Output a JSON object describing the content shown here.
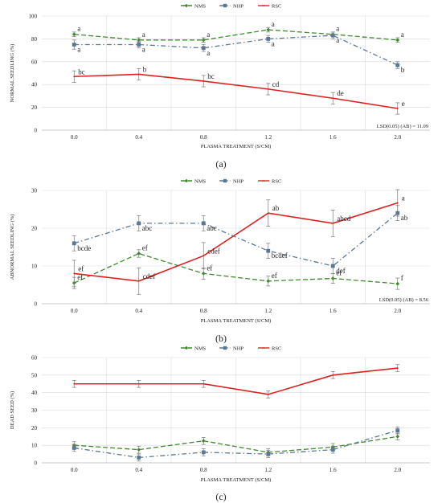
{
  "chart_data": [
    {
      "type": "line",
      "panel_label": "(a)",
      "x": [
        "0.0",
        "0.4",
        "0.8",
        "1.2",
        "1.6",
        "2.0"
      ],
      "xlabel": "PLASMA TREATMENT (S/CM)",
      "ylabel": "NORMAL SEEDLING (%)",
      "ylim": [
        0,
        100
      ],
      "yticks": [
        "0",
        "20",
        "40",
        "60",
        "80",
        "100"
      ],
      "legend_position": "top",
      "lsd_label": "LSD(0.05) (AB) = 11.09",
      "series": [
        {
          "name": "NMS",
          "color": "#3f8a2e",
          "dash": "6,3",
          "marker": "diamond",
          "values": [
            84,
            79,
            79,
            88,
            84,
            79
          ],
          "errors": [
            2,
            2,
            2,
            2,
            2,
            2
          ],
          "letters": [
            "a",
            "a",
            "a",
            "a",
            "a",
            "a"
          ]
        },
        {
          "name": "NHP",
          "color": "#5a7896",
          "dash": "6,3,1.5,3",
          "marker": "square",
          "values": [
            75,
            75,
            72,
            80,
            83,
            57
          ],
          "errors": [
            4,
            3,
            3,
            3,
            3,
            3
          ],
          "letters": [
            "a",
            "a",
            "a",
            "a",
            "a",
            "b"
          ]
        },
        {
          "name": "RSC",
          "color": "#e02020",
          "dash": "",
          "marker": "none",
          "values": [
            47,
            49,
            43,
            36,
            28,
            19
          ],
          "errors": [
            5,
            5,
            5,
            5,
            5,
            5
          ],
          "letters": [
            "bc",
            "b",
            "bc",
            "cd",
            "de",
            "e"
          ]
        }
      ]
    },
    {
      "type": "line",
      "panel_label": "(b)",
      "x": [
        "0.0",
        "0.4",
        "0.8",
        "1.2",
        "1.6",
        "2.0"
      ],
      "xlabel": "PLASMA TREATMENT (S/CM)",
      "ylabel": "ABNORMAL SEEDLING (%)",
      "ylim": [
        0,
        30
      ],
      "yticks": [
        "0",
        "10",
        "20",
        "30"
      ],
      "legend_position": "top",
      "lsd_label": "LSD(0.05) (AB) = 8.56",
      "series": [
        {
          "name": "NMS",
          "color": "#3f8a2e",
          "dash": "6,3",
          "marker": "diamond",
          "values": [
            5.5,
            13.3,
            8,
            6,
            6.7,
            5.3
          ],
          "errors": [
            1.5,
            1,
            1.5,
            1.3,
            1.3,
            1.5
          ],
          "letters": [
            "ef",
            "ef",
            "ef",
            "ef",
            "ef",
            "f"
          ]
        },
        {
          "name": "NHP",
          "color": "#5a7896",
          "dash": "6,3,1.5,3",
          "marker": "square",
          "values": [
            16,
            21.3,
            21.3,
            14,
            10,
            24
          ],
          "errors": [
            2,
            2,
            2,
            2,
            2,
            2
          ],
          "letters": [
            "bcde",
            "abc",
            "abc",
            "bcdef",
            "def",
            "ab"
          ]
        },
        {
          "name": "RSC",
          "color": "#e02020",
          "dash": "",
          "marker": "none",
          "values": [
            8,
            6,
            12.7,
            24,
            21.3,
            26.7
          ],
          "errors": [
            3.5,
            3.5,
            3.5,
            3.5,
            3.5,
            3.5
          ],
          "letters": [
            "ef",
            "cdef",
            "cdef",
            "ab",
            "abcd",
            "a"
          ]
        }
      ]
    },
    {
      "type": "line",
      "panel_label": "(c)",
      "x": [
        "0.0",
        "0.4",
        "0.8",
        "1.2",
        "1.6",
        "2.0"
      ],
      "xlabel": "PLASMA TREATMENT (S/CM)",
      "ylabel": "DEAD SEED (%)",
      "ylim": [
        0,
        60
      ],
      "yticks": [
        "0",
        "10",
        "20",
        "30",
        "40",
        "50",
        "60"
      ],
      "legend_position": "top",
      "series": [
        {
          "name": "NMS",
          "color": "#3f8a2e",
          "dash": "6,3",
          "marker": "diamond",
          "values": [
            10,
            7.5,
            12.5,
            6,
            9,
            15
          ],
          "errors": [
            2,
            2,
            2,
            2,
            2,
            2
          ],
          "letters": []
        },
        {
          "name": "NHP",
          "color": "#5a7896",
          "dash": "6,3,1.5,3",
          "marker": "square",
          "values": [
            8.5,
            3,
            6,
            5,
            7.5,
            18.5
          ],
          "errors": [
            2,
            2,
            2,
            2,
            2,
            2
          ],
          "letters": []
        },
        {
          "name": "RSC",
          "color": "#e02020",
          "dash": "",
          "marker": "none",
          "values": [
            45,
            45,
            45,
            39,
            50,
            54
          ],
          "errors": [
            2,
            2,
            2,
            2,
            2,
            2
          ],
          "letters": []
        }
      ]
    }
  ]
}
